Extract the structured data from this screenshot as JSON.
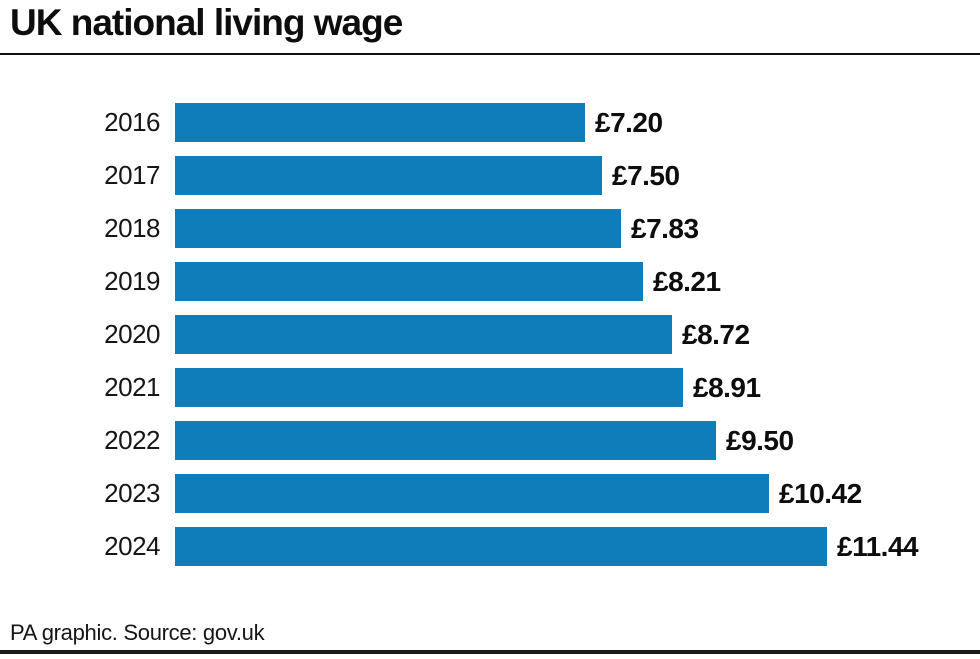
{
  "title": "UK national living wage",
  "source": "PA graphic. Source: gov.uk",
  "colors": {
    "bar": "#0f7dba",
    "text": "#111111",
    "rule": "#1a1a1a"
  },
  "chart_data": {
    "type": "bar",
    "orientation": "horizontal",
    "title": "UK national living wage",
    "categories": [
      "2016",
      "2017",
      "2018",
      "2019",
      "2020",
      "2021",
      "2022",
      "2023",
      "2024"
    ],
    "values": [
      7.2,
      7.5,
      7.83,
      8.21,
      8.72,
      8.91,
      9.5,
      10.42,
      11.44
    ],
    "value_labels": [
      "£7.20",
      "£7.50",
      "£7.83",
      "£8.21",
      "£8.72",
      "£8.91",
      "£9.50",
      "£10.42",
      "£11.44"
    ],
    "xlabel": "",
    "ylabel": "",
    "xlim": [
      0,
      11.44
    ],
    "grid": false,
    "legend": "none",
    "bar_color": "#0f7dba",
    "annotation": "PA graphic. Source: gov.uk"
  }
}
